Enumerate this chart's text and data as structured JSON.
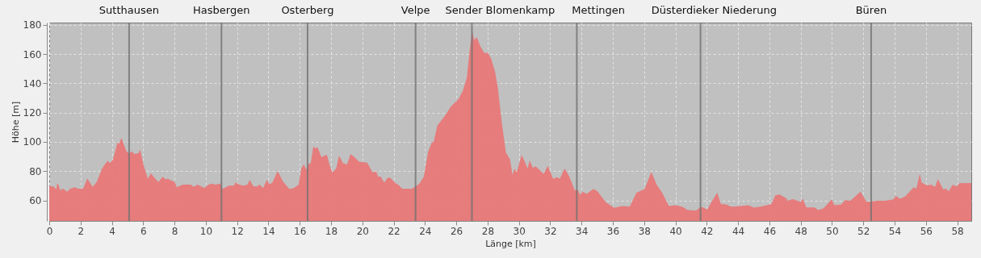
{
  "chart_data": {
    "type": "area",
    "xlabel": "Länge [km]",
    "ylabel": "Höhe [m]",
    "xlim": [
      0,
      58.9
    ],
    "ylim": [
      46,
      181.5
    ],
    "xticks": [
      0,
      2,
      4,
      6,
      8,
      10,
      12,
      14,
      16,
      18,
      20,
      22,
      24,
      26,
      28,
      30,
      32,
      34,
      36,
      38,
      40,
      42,
      44,
      46,
      48,
      50,
      52,
      54,
      56,
      58
    ],
    "yticks": [
      60,
      80,
      100,
      120,
      140,
      160,
      180
    ],
    "grid": true,
    "series": [
      {
        "color": "#e87878",
        "x": [
          0,
          0.28,
          0.45,
          0.5,
          0.58,
          0.7,
          0.88,
          1.14,
          1.34,
          1.65,
          1.82,
          2.17,
          2.43,
          2.77,
          3.03,
          3.37,
          3.72,
          3.89,
          4.06,
          4.37,
          4.44,
          4.61,
          4.92,
          5.09,
          5.26,
          5.44,
          5.69,
          5.81,
          6.04,
          6.3,
          6.5,
          6.72,
          6.98,
          7.24,
          7.41,
          7.58,
          7.84,
          8.01,
          8.15,
          8.53,
          9.05,
          9.22,
          9.48,
          9.91,
          10.17,
          10.42,
          10.6,
          10.94,
          11.08,
          11.46,
          11.8,
          11.9,
          12.14,
          12.4,
          12.66,
          12.8,
          13.04,
          13.26,
          13.44,
          13.66,
          13.9,
          14.04,
          14.24,
          14.59,
          14.93,
          15.32,
          15.58,
          15.93,
          16.1,
          16.27,
          16.41,
          16.58,
          16.7,
          16.87,
          17.04,
          17.13,
          17.39,
          17.73,
          17.9,
          18.08,
          18.33,
          18.51,
          18.76,
          19.02,
          19.25,
          19.54,
          19.8,
          20.31,
          20.66,
          20.88,
          21,
          21.17,
          21.4,
          21.61,
          21.78,
          22.12,
          22.29,
          22.55,
          23.15,
          23.41,
          23.67,
          23.93,
          24.19,
          24.44,
          24.56,
          24.79,
          25.3,
          25.64,
          25.9,
          26.16,
          26.42,
          26.68,
          26.85,
          27.02,
          27.14,
          27.31,
          27.54,
          27.8,
          28,
          28.23,
          28.48,
          28.66,
          28.91,
          29.17,
          29.43,
          29.6,
          29.72,
          29.86,
          30.17,
          30.38,
          30.55,
          30.69,
          30.89,
          31.07,
          31.32,
          31.58,
          31.84,
          32.19,
          32.44,
          32.61,
          32.92,
          33.22,
          33.56,
          33.78,
          33.9,
          34.07,
          34.33,
          34.76,
          35.02,
          35.54,
          36.09,
          36.57,
          37.08,
          37.51,
          38.03,
          38.46,
          38.8,
          39.15,
          39.58,
          40.01,
          40.44,
          40.78,
          41.3,
          41.65,
          42.04,
          42.25,
          42.67,
          42.9,
          43.28,
          43.54,
          43.8,
          44.66,
          45.01,
          45.44,
          46.12,
          46.38,
          46.64,
          47.07,
          47.16,
          47.5,
          48.01,
          48.13,
          48.36,
          48.87,
          49.12,
          49.47,
          49.98,
          50.15,
          50.58,
          50.84,
          51.18,
          51.82,
          52.21,
          52.9,
          53.41,
          53.93,
          54.07,
          54.36,
          54.7,
          55.22,
          55.39,
          55.61,
          55.73,
          56.08,
          56.33,
          56.59,
          56.76,
          57.11,
          57.28,
          57.45,
          57.71,
          57.97,
          58.14,
          58.9
        ],
        "values": [
          69.7,
          69.5,
          67.5,
          71.5,
          71,
          67,
          68,
          66,
          68,
          69,
          68,
          68,
          75,
          69.3,
          72.6,
          81.8,
          87,
          85.5,
          87.7,
          99.8,
          98.3,
          102.7,
          93.7,
          92,
          93.5,
          91.7,
          92.2,
          94.6,
          83.6,
          74.8,
          78.5,
          75.4,
          72.6,
          76.3,
          74.5,
          74.8,
          73.4,
          72.6,
          69,
          70.8,
          70.8,
          69.3,
          70.8,
          68.4,
          70.8,
          71.5,
          70.8,
          71.5,
          67.9,
          70.1,
          70.1,
          72.3,
          70.8,
          70.1,
          70.8,
          74.1,
          69.7,
          69.5,
          70.8,
          68.4,
          74.1,
          71.2,
          71.9,
          80,
          73,
          67.9,
          68.2,
          70.8,
          81.8,
          84.7,
          81,
          85.5,
          85.1,
          96.8,
          95.4,
          96.5,
          89.5,
          91.3,
          84.6,
          79,
          81.8,
          90.6,
          85.5,
          84.6,
          91.7,
          89.1,
          86.4,
          85.8,
          79,
          79.9,
          76.3,
          76.3,
          72.1,
          75.4,
          75.4,
          71.7,
          70.8,
          68.1,
          67.9,
          69.5,
          71.7,
          76.3,
          92.8,
          99.6,
          100.1,
          111.1,
          118.1,
          123.9,
          126.7,
          129.4,
          134.9,
          144.1,
          162.4,
          175.2,
          169.7,
          171.5,
          165.2,
          160.6,
          161,
          156.9,
          147.8,
          136.8,
          112.9,
          92.8,
          88.2,
          77.2,
          81.8,
          79.1,
          91,
          86.4,
          81.8,
          87.3,
          82.2,
          83.3,
          80.9,
          78.1,
          83.6,
          74.8,
          75.9,
          74.8,
          81.8,
          76.3,
          67.1,
          67.1,
          63.8,
          66,
          64.4,
          67.9,
          66.2,
          58.9,
          54.9,
          56.2,
          55.8,
          65.3,
          67.7,
          79.4,
          70.8,
          65.3,
          56.2,
          56.7,
          55.6,
          53.4,
          53,
          55.6,
          53.8,
          58,
          65.3,
          57.6,
          57.1,
          55.8,
          55.8,
          56.7,
          55.1,
          55.8,
          57.4,
          63.5,
          64,
          61.6,
          59.8,
          60.9,
          58.9,
          61.3,
          55.2,
          55.2,
          53.4,
          54.7,
          60.7,
          56.7,
          57.1,
          60.2,
          59.8,
          65.9,
          58.9,
          59.8,
          59.8,
          60.7,
          63.1,
          61.1,
          62.9,
          69,
          68.1,
          78.1,
          72.1,
          70.3,
          70.8,
          69.3,
          74.5,
          67.5,
          68.1,
          66.2,
          70.8,
          69.5,
          71.7,
          71.9
        ]
      }
    ],
    "ref_lines": [
      {
        "axis": "x",
        "value": 5.1,
        "label": "Sutthausen",
        "color": "#707070"
      },
      {
        "axis": "x",
        "value": 11.0,
        "label": "Hasbergen",
        "color": "#707070"
      },
      {
        "axis": "x",
        "value": 16.5,
        "label": "Osterberg",
        "color": "#707070"
      },
      {
        "axis": "x",
        "value": 23.4,
        "label": "Velpe",
        "color": "#707070"
      },
      {
        "axis": "x",
        "value": 27.0,
        "label": "Sender Blomenkamp",
        "color": "#707070"
      },
      {
        "axis": "x",
        "value": 33.7,
        "label": "Mettingen",
        "color": "#707070"
      },
      {
        "axis": "x",
        "value": 41.6,
        "label": "Düsterdieker Niederung",
        "color": "#707070"
      },
      {
        "axis": "x",
        "value": 52.5,
        "label": "Büren",
        "color": "#707070"
      }
    ]
  }
}
